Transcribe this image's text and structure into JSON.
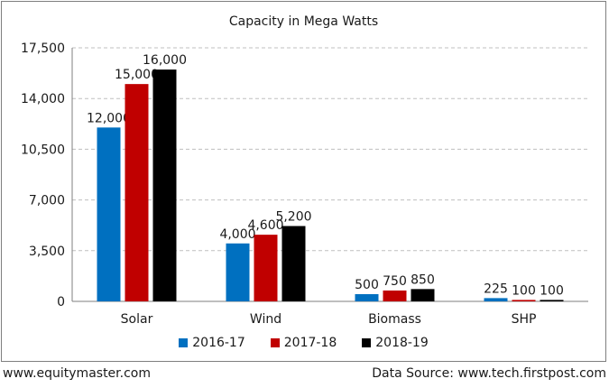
{
  "chart_data": {
    "type": "bar",
    "title": "Capacity in Mega Watts",
    "xlabel": "",
    "ylabel": "",
    "ylim": [
      0,
      17500
    ],
    "yticks": [
      0,
      3500,
      7000,
      10500,
      14000,
      17500
    ],
    "ytick_labels": [
      "0",
      "3,500",
      "7,000",
      "10,500",
      "14,000",
      "17,500"
    ],
    "grid": true,
    "legend_position": "bottom",
    "categories": [
      "Solar",
      "Wind",
      "Biomass",
      "SHP"
    ],
    "series": [
      {
        "name": "2016-17",
        "color": "#0070c0",
        "values": [
          12000,
          4000,
          500,
          225
        ],
        "labels": [
          "12,000",
          "4,000",
          "500",
          "225"
        ]
      },
      {
        "name": "2017-18",
        "color": "#c00000",
        "values": [
          15000,
          4600,
          750,
          100
        ],
        "labels": [
          "15,000",
          "4,600",
          "750",
          "100"
        ]
      },
      {
        "name": "2018-19",
        "color": "#000000",
        "values": [
          16000,
          5200,
          850,
          100
        ],
        "labels": [
          "16,000",
          "5,200",
          "850",
          "100"
        ]
      }
    ]
  },
  "footer": {
    "left": "www.equitymaster.com",
    "right": "Data Source: www.tech.firstpost.com"
  }
}
